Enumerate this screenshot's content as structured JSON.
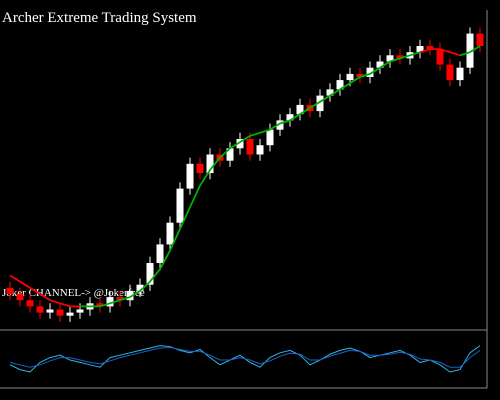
{
  "chart_data": [
    {
      "type": "candlestick",
      "title": "Archer Extreme Trading System",
      "annotation": "Joker CHANNEL-> @Jokerfree",
      "up_color": "#ffffff",
      "down_color": "#ff0000",
      "open": [
        12,
        10,
        8,
        6,
        4,
        5,
        3,
        4,
        5,
        7,
        6,
        9,
        8,
        11,
        13,
        20,
        26,
        33,
        44,
        52,
        49,
        55,
        53,
        57,
        60,
        55,
        58,
        63,
        66,
        68,
        71,
        69,
        74,
        76,
        79,
        81,
        80,
        83,
        85,
        87,
        86,
        88,
        90,
        89,
        84,
        79,
        83,
        94
      ],
      "high": [
        14,
        12,
        10,
        8,
        7,
        7,
        6,
        7,
        9,
        9,
        11,
        11,
        13,
        15,
        22,
        28,
        35,
        46,
        54,
        54,
        57,
        57,
        59,
        62,
        62,
        60,
        65,
        68,
        70,
        73,
        73,
        76,
        78,
        81,
        83,
        83,
        85,
        87,
        89,
        89,
        90,
        92,
        92,
        91,
        86,
        85,
        96,
        96
      ],
      "low": [
        8,
        6,
        4,
        2,
        2,
        1,
        1,
        2,
        3,
        4,
        4,
        6,
        6,
        9,
        11,
        18,
        24,
        31,
        42,
        47,
        47,
        51,
        51,
        55,
        53,
        53,
        56,
        61,
        64,
        66,
        67,
        67,
        72,
        74,
        77,
        78,
        78,
        81,
        83,
        84,
        84,
        86,
        87,
        82,
        77,
        77,
        81,
        88
      ],
      "close": [
        10,
        8,
        6,
        4,
        5,
        3,
        4,
        5,
        7,
        6,
        9,
        8,
        11,
        13,
        20,
        26,
        33,
        44,
        52,
        49,
        55,
        53,
        57,
        60,
        55,
        58,
        63,
        66,
        68,
        71,
        69,
        74,
        76,
        79,
        81,
        80,
        83,
        85,
        87,
        86,
        88,
        90,
        89,
        84,
        79,
        83,
        94,
        90
      ],
      "series": [
        {
          "color": "#00b000",
          "values": [
            null,
            null,
            null,
            null,
            null,
            null,
            null,
            6,
            6,
            6,
            7,
            8,
            9,
            11,
            14,
            18,
            24,
            31,
            38,
            45,
            50,
            54,
            57,
            59,
            61,
            62,
            63,
            65,
            66,
            68,
            70,
            72,
            74,
            76,
            78,
            80,
            81,
            83,
            85,
            86,
            87,
            88,
            null,
            null,
            null,
            87,
            88,
            90
          ]
        },
        {
          "color": "#ff0000",
          "values": [
            16,
            14,
            12,
            10,
            8,
            7,
            6,
            6,
            null,
            null,
            null,
            null,
            null,
            null,
            null,
            null,
            null,
            null,
            null,
            null,
            null,
            null,
            null,
            null,
            null,
            null,
            null,
            null,
            null,
            null,
            null,
            null,
            null,
            null,
            null,
            null,
            null,
            null,
            null,
            null,
            null,
            88,
            89,
            89,
            88,
            87,
            null,
            null
          ]
        }
      ],
      "ylim": [
        0,
        100
      ]
    },
    {
      "type": "line",
      "series": [
        {
          "color": "#2ab7e8",
          "values": [
            40,
            30,
            25,
            45,
            55,
            60,
            50,
            45,
            40,
            35,
            55,
            60,
            65,
            70,
            75,
            80,
            78,
            70,
            65,
            72,
            55,
            40,
            50,
            60,
            45,
            35,
            55,
            65,
            70,
            60,
            40,
            50,
            62,
            70,
            75,
            68,
            55,
            60,
            65,
            70,
            60,
            45,
            50,
            40,
            25,
            30,
            65,
            80
          ]
        },
        {
          "color": "#2060c0",
          "values": [
            45,
            40,
            35,
            40,
            48,
            55,
            55,
            50,
            45,
            42,
            48,
            55,
            60,
            65,
            70,
            75,
            76,
            72,
            68,
            68,
            60,
            50,
            50,
            55,
            50,
            42,
            48,
            58,
            64,
            62,
            50,
            50,
            58,
            64,
            70,
            68,
            60,
            60,
            62,
            66,
            62,
            52,
            50,
            45,
            35,
            35,
            55,
            70
          ]
        }
      ],
      "ylim": [
        0,
        100
      ]
    }
  ]
}
